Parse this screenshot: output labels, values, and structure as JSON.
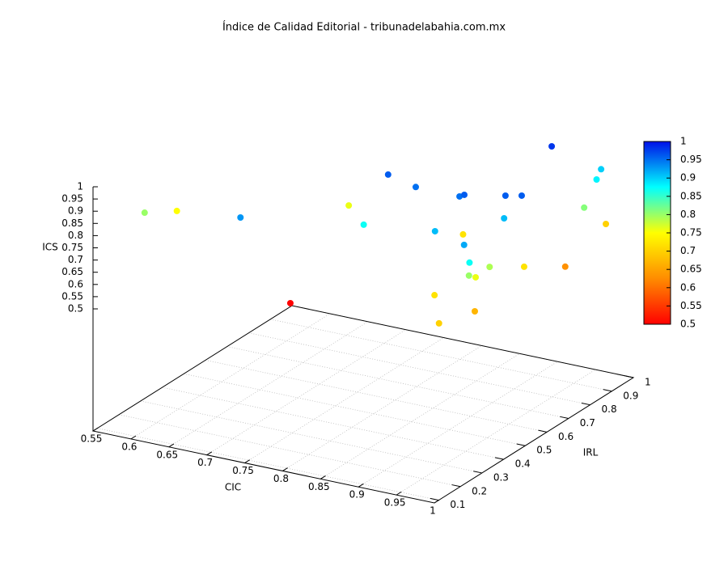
{
  "chart_data": {
    "type": "scatter3d",
    "title": "Índice de Calidad Editorial - tribunadelabahia.com.mx",
    "xlabel": "CIC",
    "ylabel": "IRL",
    "zlabel": "ICS",
    "x": [
      0.565,
      0.575,
      0.717,
      0.736,
      0.74,
      0.827,
      0.807,
      0.85,
      0.923,
      0.95,
      0.991,
      0.908,
      0.914,
      0.883,
      0.977,
      0.991,
      0.984,
      0.978,
      0.996,
      0.987,
      0.956,
      0.971,
      0.972,
      0.994,
      0.932,
      1.0,
      0.995,
      0.99,
      0.986,
      1.0
    ],
    "y": [
      0.266,
      0.38,
      0.176,
      0.34,
      0.596,
      0.36,
      0.543,
      0.52,
      0.353,
      0.256,
      0.133,
      0.519,
      0.52,
      0.623,
      0.298,
      0.274,
      0.296,
      0.348,
      0.281,
      0.381,
      0.563,
      0.504,
      0.582,
      0.516,
      0.861,
      0.685,
      0.79,
      0.865,
      0.9,
      0.873
    ],
    "z": [
      0.8,
      0.75,
      0.93,
      0.5,
      0.76,
      0.87,
      0.96,
      0.95,
      0.91,
      0.72,
      0.7,
      0.95,
      0.96,
      0.72,
      0.92,
      0.87,
      0.8,
      0.76,
      0.67,
      0.79,
      0.96,
      0.91,
      0.96,
      0.72,
      0.98,
      0.63,
      0.81,
      0.88,
      0.9,
      0.7
    ],
    "xlim": [
      0.55,
      1
    ],
    "ylim": [
      0.08,
      1
    ],
    "zlim": [
      0,
      1
    ],
    "xticks": [
      0.55,
      0.6,
      0.65,
      0.7,
      0.75,
      0.8,
      0.85,
      0.9,
      0.95,
      1
    ],
    "yticks": [
      0.1,
      0.2,
      0.3,
      0.4,
      0.5,
      0.6,
      0.7,
      0.8,
      0.9,
      1
    ],
    "zticks": [
      0.5,
      0.55,
      0.6,
      0.65,
      0.7,
      0.75,
      0.8,
      0.85,
      0.9,
      0.95,
      1
    ],
    "cblim": [
      0.5,
      1
    ],
    "cbticks": [
      0.5,
      0.55,
      0.6,
      0.65,
      0.7,
      0.75,
      0.8,
      0.85,
      0.9,
      0.95,
      1
    ],
    "colormap": [
      "#ff0000",
      "#ff8c00",
      "#ffff00",
      "#00ffff",
      "#0010e8"
    ],
    "grid": true
  }
}
